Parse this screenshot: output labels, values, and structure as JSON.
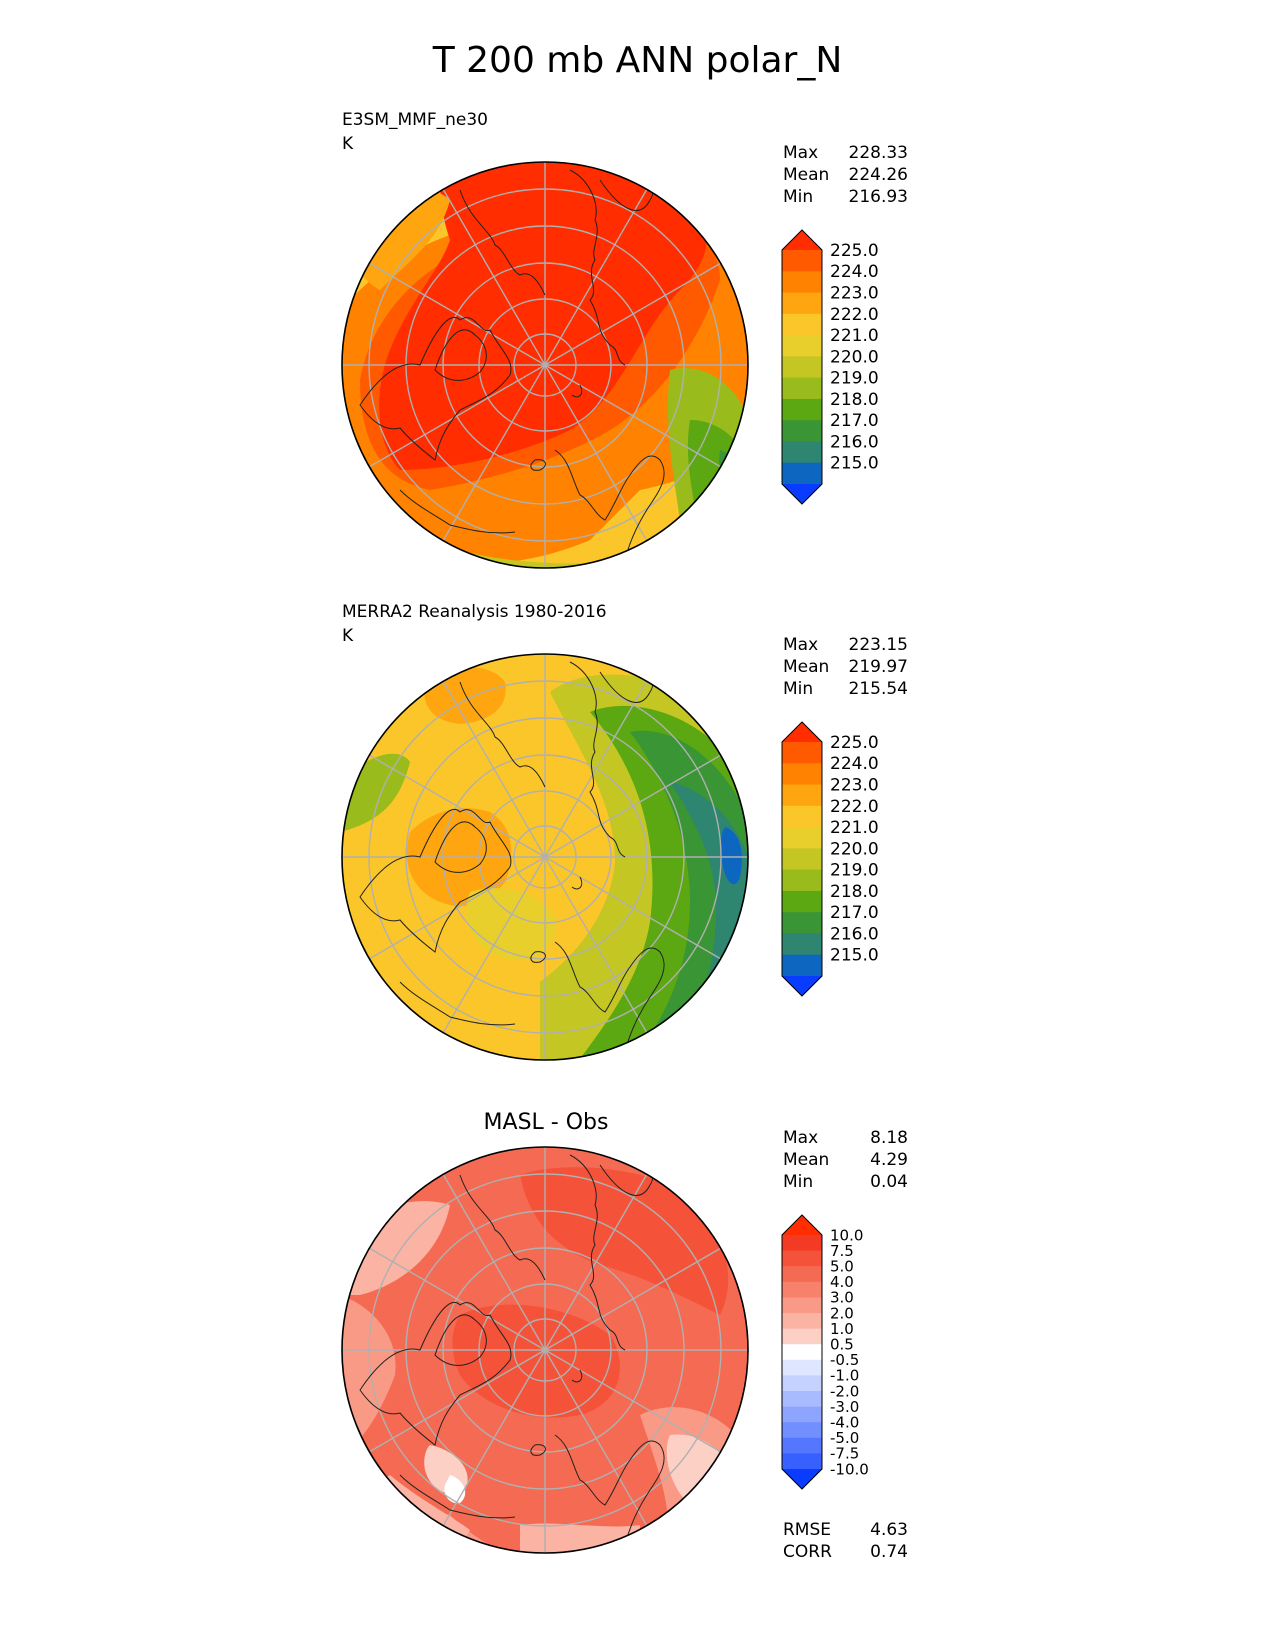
{
  "figure": {
    "title": "T 200 mb ANN polar_N"
  },
  "panels": [
    {
      "label": "E3SM_MMF_ne30",
      "units": "K",
      "stats": {
        "labels": [
          "Max",
          "Mean",
          "Min"
        ],
        "values": [
          "228.33",
          "224.26",
          "216.93"
        ]
      },
      "colorbar": {
        "labels": [
          "225.0",
          "224.0",
          "223.0",
          "222.0",
          "221.0",
          "220.0",
          "219.0",
          "218.0",
          "217.0",
          "216.0",
          "215.0"
        ],
        "colors": [
          "#ff2d00",
          "#ff5a00",
          "#ff8200",
          "#ffa510",
          "#fbc62a",
          "#e9cf2c",
          "#c4c624",
          "#99bb1c",
          "#5ba812",
          "#3a9535",
          "#2e8570",
          "#0d67c0",
          "#0a3cff"
        ]
      }
    },
    {
      "label": "MERRA2 Reanalysis 1980-2016",
      "units": "K",
      "stats": {
        "labels": [
          "Max",
          "Mean",
          "Min"
        ],
        "values": [
          "223.15",
          "219.97",
          "215.54"
        ]
      },
      "colorbar": {
        "labels": [
          "225.0",
          "224.0",
          "223.0",
          "222.0",
          "221.0",
          "220.0",
          "219.0",
          "218.0",
          "217.0",
          "216.0",
          "215.0"
        ],
        "colors": [
          "#ff2d00",
          "#ff5a00",
          "#ff8200",
          "#ffa510",
          "#fbc62a",
          "#e9cf2c",
          "#c4c624",
          "#99bb1c",
          "#5ba812",
          "#3a9535",
          "#2e8570",
          "#0d67c0",
          "#0a3cff"
        ]
      }
    },
    {
      "title": "MASL - Obs",
      "stats": {
        "labels": [
          "Max",
          "Mean",
          "Min"
        ],
        "values": [
          "8.18",
          "4.29",
          "0.04"
        ]
      },
      "colorbar": {
        "labels": [
          "10.0",
          "7.5",
          "5.0",
          "4.0",
          "3.0",
          "2.0",
          "1.0",
          "0.5",
          "-0.5",
          "-1.0",
          "-2.0",
          "-3.0",
          "-4.0",
          "-5.0",
          "-7.5",
          "-10.0"
        ],
        "colors": [
          "#ff2d00",
          "#f23b22",
          "#f4533a",
          "#f56a52",
          "#f7816b",
          "#f99a87",
          "#fbb3a4",
          "#fdd0c6",
          "#ffffff",
          "#dfe6ff",
          "#c5d1ff",
          "#a9bbff",
          "#8ea5ff",
          "#728fff",
          "#5577ff",
          "#3760ff",
          "#0a3cff"
        ]
      },
      "extra_stats": {
        "labels": [
          "RMSE",
          "CORR"
        ],
        "values": [
          "4.63",
          "0.74"
        ]
      }
    }
  ],
  "chart_data": [
    {
      "type": "heatmap",
      "title": "E3SM_MMF_ne30",
      "units": "K",
      "projection": "north polar stereographic",
      "value_range": [
        216.93,
        228.33
      ],
      "levels": [
        215.0,
        216.0,
        217.0,
        218.0,
        219.0,
        220.0,
        221.0,
        222.0,
        223.0,
        224.0,
        225.0
      ],
      "summary": {
        "max": 228.33,
        "mean": 224.26,
        "min": 216.93
      }
    },
    {
      "type": "heatmap",
      "title": "MERRA2 Reanalysis 1980-2016",
      "units": "K",
      "projection": "north polar stereographic",
      "value_range": [
        215.54,
        223.15
      ],
      "levels": [
        215.0,
        216.0,
        217.0,
        218.0,
        219.0,
        220.0,
        221.0,
        222.0,
        223.0,
        224.0,
        225.0
      ],
      "summary": {
        "max": 223.15,
        "mean": 219.97,
        "min": 215.54
      }
    },
    {
      "type": "heatmap",
      "title": "MASL - Obs",
      "projection": "north polar stereographic",
      "value_range": [
        0.04,
        8.18
      ],
      "levels": [
        -10.0,
        -7.5,
        -5.0,
        -4.0,
        -3.0,
        -2.0,
        -1.0,
        -0.5,
        0.5,
        1.0,
        2.0,
        3.0,
        4.0,
        5.0,
        7.5,
        10.0
      ],
      "summary": {
        "max": 8.18,
        "mean": 4.29,
        "min": 0.04,
        "rmse": 4.63,
        "corr": 0.74
      }
    }
  ]
}
